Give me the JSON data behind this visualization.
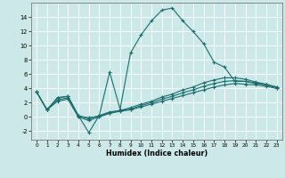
{
  "xlabel": "Humidex (Indice chaleur)",
  "xlim": [
    -0.5,
    23.5
  ],
  "ylim": [
    -3.2,
    16.0
  ],
  "yticks": [
    -2,
    0,
    2,
    4,
    6,
    8,
    10,
    12,
    14
  ],
  "xticks": [
    0,
    1,
    2,
    3,
    4,
    5,
    6,
    7,
    8,
    9,
    10,
    11,
    12,
    13,
    14,
    15,
    16,
    17,
    18,
    19,
    20,
    21,
    22,
    23
  ],
  "bg_color": "#cde8e8",
  "grid_color": "#ffffff",
  "line_color": "#1a6e6e",
  "line1_x": [
    0,
    1,
    2,
    3,
    4,
    5,
    6,
    7,
    8,
    9,
    10,
    11,
    12,
    13,
    14,
    15,
    16,
    17,
    18,
    19,
    20,
    21,
    22,
    23
  ],
  "line1_y": [
    3.5,
    1.0,
    2.7,
    2.9,
    0.2,
    -2.2,
    0.2,
    6.3,
    1.1,
    9.0,
    11.5,
    13.5,
    15.0,
    15.3,
    13.5,
    12.0,
    10.3,
    7.7,
    7.0,
    5.0,
    5.0,
    4.8,
    4.5,
    4.2
  ],
  "line2_x": [
    0,
    1,
    2,
    3,
    4,
    5,
    6,
    7,
    8,
    9,
    10,
    11,
    12,
    13,
    14,
    15,
    16,
    17,
    18,
    19,
    20,
    21,
    22,
    23
  ],
  "line2_y": [
    3.5,
    1.0,
    2.7,
    2.9,
    0.2,
    -0.3,
    0.2,
    0.7,
    0.9,
    1.3,
    1.8,
    2.2,
    2.8,
    3.2,
    3.8,
    4.2,
    4.8,
    5.2,
    5.5,
    5.5,
    5.3,
    4.9,
    4.6,
    4.2
  ],
  "line3_x": [
    0,
    1,
    2,
    3,
    4,
    5,
    6,
    7,
    8,
    9,
    10,
    11,
    12,
    13,
    14,
    15,
    16,
    17,
    18,
    19,
    20,
    21,
    22,
    23
  ],
  "line3_y": [
    3.5,
    1.0,
    2.2,
    2.5,
    0.0,
    -0.5,
    0.0,
    0.5,
    0.8,
    1.0,
    1.4,
    1.8,
    2.2,
    2.6,
    3.0,
    3.4,
    3.8,
    4.2,
    4.5,
    4.7,
    4.6,
    4.5,
    4.3,
    4.0
  ],
  "line4_x": [
    0,
    1,
    2,
    3,
    4,
    5,
    6,
    7,
    8,
    9,
    10,
    11,
    12,
    13,
    14,
    15,
    16,
    17,
    18,
    19,
    20,
    21,
    22,
    23
  ],
  "line4_y": [
    3.5,
    1.0,
    2.4,
    2.7,
    0.1,
    -0.1,
    0.1,
    0.6,
    0.9,
    1.1,
    1.6,
    2.0,
    2.5,
    2.9,
    3.4,
    3.8,
    4.3,
    4.7,
    5.0,
    5.1,
    5.0,
    4.7,
    4.5,
    4.1
  ],
  "figsize": [
    3.2,
    2.0
  ],
  "dpi": 100
}
